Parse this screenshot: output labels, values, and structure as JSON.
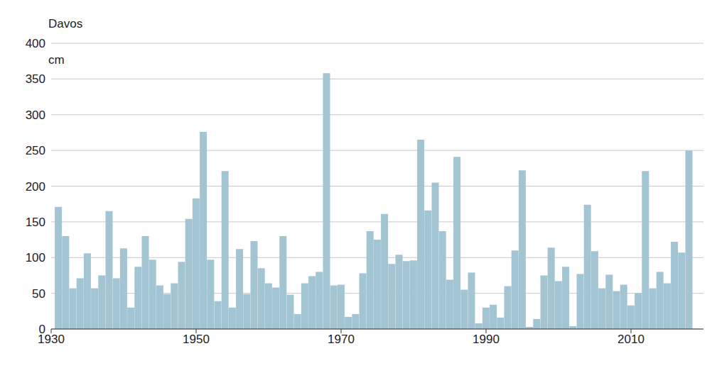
{
  "chart_data": {
    "type": "bar",
    "title": "Davos",
    "y_label": "cm",
    "x": [
      1931,
      1932,
      1933,
      1934,
      1935,
      1936,
      1937,
      1938,
      1939,
      1940,
      1941,
      1942,
      1943,
      1944,
      1945,
      1946,
      1947,
      1948,
      1949,
      1950,
      1951,
      1952,
      1953,
      1954,
      1955,
      1956,
      1957,
      1958,
      1959,
      1960,
      1961,
      1962,
      1963,
      1964,
      1965,
      1966,
      1967,
      1968,
      1969,
      1970,
      1971,
      1972,
      1973,
      1974,
      1975,
      1976,
      1977,
      1978,
      1979,
      1980,
      1981,
      1982,
      1983,
      1984,
      1985,
      1986,
      1987,
      1988,
      1989,
      1990,
      1991,
      1992,
      1993,
      1994,
      1995,
      1996,
      1997,
      1998,
      1999,
      2000,
      2001,
      2002,
      2003,
      2004,
      2005,
      2006,
      2007,
      2008,
      2009,
      2010,
      2011,
      2012,
      2013,
      2014,
      2015,
      2016,
      2017,
      2018
    ],
    "values": [
      171,
      130,
      57,
      71,
      106,
      57,
      75,
      165,
      71,
      113,
      30,
      87,
      130,
      97,
      61,
      49,
      64,
      94,
      154,
      183,
      276,
      97,
      39,
      221,
      30,
      112,
      49,
      123,
      85,
      64,
      58,
      130,
      48,
      21,
      64,
      74,
      80,
      358,
      61,
      62,
      17,
      21,
      78,
      137,
      125,
      161,
      91,
      104,
      95,
      96,
      265,
      166,
      205,
      137,
      69,
      241,
      55,
      79,
      8,
      30,
      34,
      16,
      60,
      110,
      222,
      3,
      14,
      75,
      114,
      67,
      87,
      4,
      77,
      174,
      109,
      57,
      76,
      53,
      62,
      33,
      50,
      221,
      57,
      80,
      64,
      122,
      107,
      250
    ],
    "color": "#a3c4d3",
    "xlim": [
      1930,
      2020
    ],
    "xticks": [
      1930,
      1950,
      1970,
      1990,
      2010
    ],
    "ylim": [
      0,
      400
    ],
    "yticks": [
      0,
      50,
      100,
      150,
      200,
      250,
      300,
      350,
      400
    ],
    "grid": true
  }
}
